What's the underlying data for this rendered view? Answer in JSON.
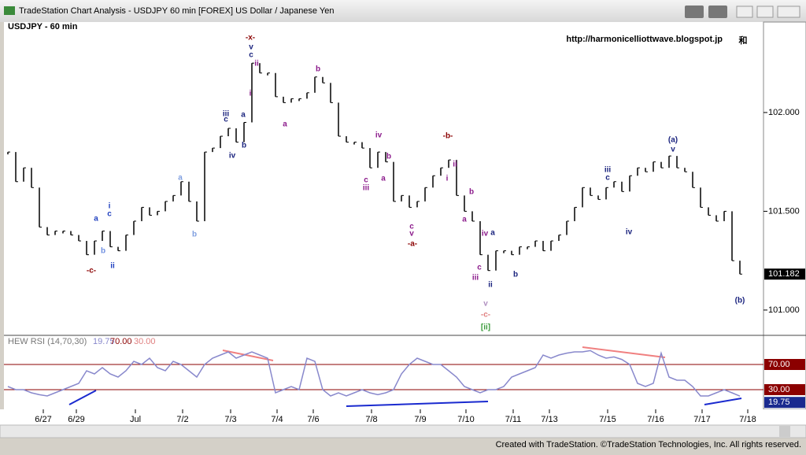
{
  "window": {
    "title": "TradeStation Chart Analysis - USDJPY 60 min [FOREX] US Dollar / Japanese Yen",
    "footer": "Created with TradeStation. ©TradeStation Technologies, Inc. All rights reserved."
  },
  "chart_data": [
    {
      "type": "bar",
      "title": "USDJPY - 60 min",
      "url": "http://harmonicelliottwave.blogspot.jp",
      "logo": "和",
      "color": "#000000",
      "values": [
        101.8,
        101.65,
        101.72,
        101.62,
        101.42,
        101.38,
        101.4,
        101.4,
        101.38,
        101.35,
        101.28,
        101.35,
        101.4,
        101.32,
        101.3,
        101.38,
        101.45,
        101.52,
        101.48,
        101.5,
        101.55,
        101.58,
        101.65,
        101.55,
        101.45,
        101.8,
        101.82,
        101.88,
        101.92,
        101.85,
        101.95,
        102.25,
        102.2,
        102.2,
        102.08,
        102.05,
        102.07,
        102.07,
        102.1,
        102.18,
        102.15,
        102.05,
        101.88,
        101.85,
        101.85,
        101.82,
        101.72,
        101.8,
        101.75,
        101.55,
        101.58,
        101.52,
        101.55,
        101.62,
        101.68,
        101.72,
        101.76,
        101.58,
        101.5,
        101.45,
        101.28,
        101.2,
        101.3,
        101.3,
        101.28,
        101.32,
        101.32,
        101.35,
        101.3,
        101.35,
        101.38,
        101.45,
        101.52,
        101.62,
        101.58,
        101.56,
        101.62,
        101.65,
        101.6,
        101.68,
        101.72,
        101.7,
        101.75,
        101.72,
        101.78,
        101.72,
        101.7,
        101.62,
        101.52,
        101.48,
        101.45,
        101.5,
        101.25,
        101.182
      ],
      "xlim": [
        -0.5,
        96
      ],
      "xticks": [
        {
          "value": 4.5,
          "label": "6/27"
        },
        {
          "value": 8.7,
          "label": "6/29"
        },
        {
          "value": 16.2,
          "label": "Jul"
        },
        {
          "value": 22.2,
          "label": "7/2"
        },
        {
          "value": 28.3,
          "label": "7/3"
        },
        {
          "value": 34.2,
          "label": "7/4"
        },
        {
          "value": 38.8,
          "label": "7/6"
        },
        {
          "value": 46.2,
          "label": "7/8"
        },
        {
          "value": 52.4,
          "label": "7/9"
        },
        {
          "value": 58.2,
          "label": "7/10"
        },
        {
          "value": 64.2,
          "label": "7/11"
        },
        {
          "value": 68.8,
          "label": "7/13"
        },
        {
          "value": 76.2,
          "label": "7/15"
        },
        {
          "value": 82.3,
          "label": "7/16"
        },
        {
          "value": 88.2,
          "label": "7/17"
        },
        {
          "value": 94,
          "label": "7/18"
        }
      ],
      "ylim": [
        100.876,
        102.458
      ],
      "yticks": [
        {
          "value": 101,
          "label": "101.000"
        },
        {
          "value": 101.5,
          "label": "101.500"
        },
        {
          "value": 102,
          "label": "102.000"
        }
      ],
      "annotations": [
        {
          "text": "-c-",
          "color": "#8b0000"
        },
        {
          "text": "a",
          "color": "#1f3fbf"
        },
        {
          "text": "b",
          "color": "#6f8fe0"
        },
        {
          "text": "i",
          "color": "#1f3fbf"
        },
        {
          "text": "c",
          "color": "#1f3fbf"
        },
        {
          "text": "ii",
          "color": "#1f3fbf"
        },
        {
          "text": "a",
          "color": "#7f9fe0"
        },
        {
          "text": "b",
          "color": "#7f9fe0"
        },
        {
          "text": "iii",
          "color": "#1a237e"
        },
        {
          "text": "c",
          "color": "#1a237e"
        },
        {
          "text": "iv",
          "color": "#1a237e"
        },
        {
          "text": "a",
          "color": "#1a237e"
        },
        {
          "text": "b",
          "color": "#1a237e"
        },
        {
          "text": "-x-",
          "color": "#8b0000"
        },
        {
          "text": "v",
          "color": "#1a237e"
        },
        {
          "text": "c",
          "color": "#1a237e"
        },
        {
          "text": "ii",
          "color": "#8b1a8b"
        },
        {
          "text": "i",
          "color": "#8b1a8b"
        },
        {
          "text": "a",
          "color": "#8b1a8b"
        },
        {
          "text": "b",
          "color": "#8b1a8b"
        },
        {
          "text": "iv",
          "color": "#8b1a8b"
        },
        {
          "text": "b",
          "color": "#8b1a8b"
        },
        {
          "text": "c",
          "color": "#8b1a8b"
        },
        {
          "text": "iii",
          "color": "#8b1a8b"
        },
        {
          "text": "a",
          "color": "#8b1a8b"
        },
        {
          "text": "c",
          "color": "#8b1a8b"
        },
        {
          "text": "v",
          "color": "#8b1a8b"
        },
        {
          "text": "-a-",
          "color": "#8b0000"
        },
        {
          "text": "-b-",
          "color": "#8b0000"
        },
        {
          "text": "ii",
          "color": "#8b1a8b"
        },
        {
          "text": "i",
          "color": "#8b1a8b"
        },
        {
          "text": "b",
          "color": "#8b1a8b"
        },
        {
          "text": "a",
          "color": "#8b1a8b"
        },
        {
          "text": "iv",
          "color": "#8b1a8b"
        },
        {
          "text": "a",
          "color": "#1a237e"
        },
        {
          "text": "c",
          "color": "#8b1a8b"
        },
        {
          "text": "iii",
          "color": "#8b1a8b"
        },
        {
          "text": "ii",
          "color": "#1a237e"
        },
        {
          "text": "b",
          "color": "#1a237e"
        },
        {
          "text": "v",
          "color": "#b08fc0"
        },
        {
          "text": "-c-",
          "color": "#e08080"
        },
        {
          "text": "[ii]",
          "color": "#3a9a3a"
        },
        {
          "text": "iii",
          "color": "#1a237e"
        },
        {
          "text": "c",
          "color": "#1a237e"
        },
        {
          "text": "iv",
          "color": "#1a237e"
        },
        {
          "text": "(a)",
          "color": "#1a237e"
        },
        {
          "text": "v",
          "color": "#1a237e"
        },
        {
          "text": "(b)",
          "color": "#1a237e"
        }
      ]
    },
    {
      "type": "line",
      "title": "HEW RSI (14,70,30)",
      "color": "#8888cc",
      "values": [
        35,
        30,
        30,
        25,
        22,
        20,
        25,
        30,
        35,
        40,
        60,
        55,
        65,
        55,
        50,
        60,
        75,
        70,
        80,
        65,
        60,
        75,
        70,
        60,
        50,
        70,
        80,
        85,
        90,
        80,
        85,
        90,
        85,
        80,
        25,
        30,
        35,
        30,
        80,
        75,
        30,
        20,
        25,
        20,
        25,
        30,
        25,
        22,
        25,
        30,
        55,
        70,
        80,
        75,
        70,
        70,
        60,
        50,
        35,
        30,
        25,
        30,
        30,
        35,
        50,
        55,
        60,
        65,
        85,
        80,
        85,
        88,
        90,
        90,
        92,
        85,
        80,
        82,
        78,
        70,
        40,
        35,
        40,
        88,
        50,
        45,
        45,
        35,
        20,
        20,
        25,
        30,
        25,
        19.75
      ],
      "xlim": [
        -0.5,
        96
      ],
      "ylim": [
        0,
        100
      ],
      "levels": [
        {
          "value": 70,
          "label": "70.00"
        },
        {
          "value": 30,
          "label": "30.00"
        }
      ]
    }
  ]
}
